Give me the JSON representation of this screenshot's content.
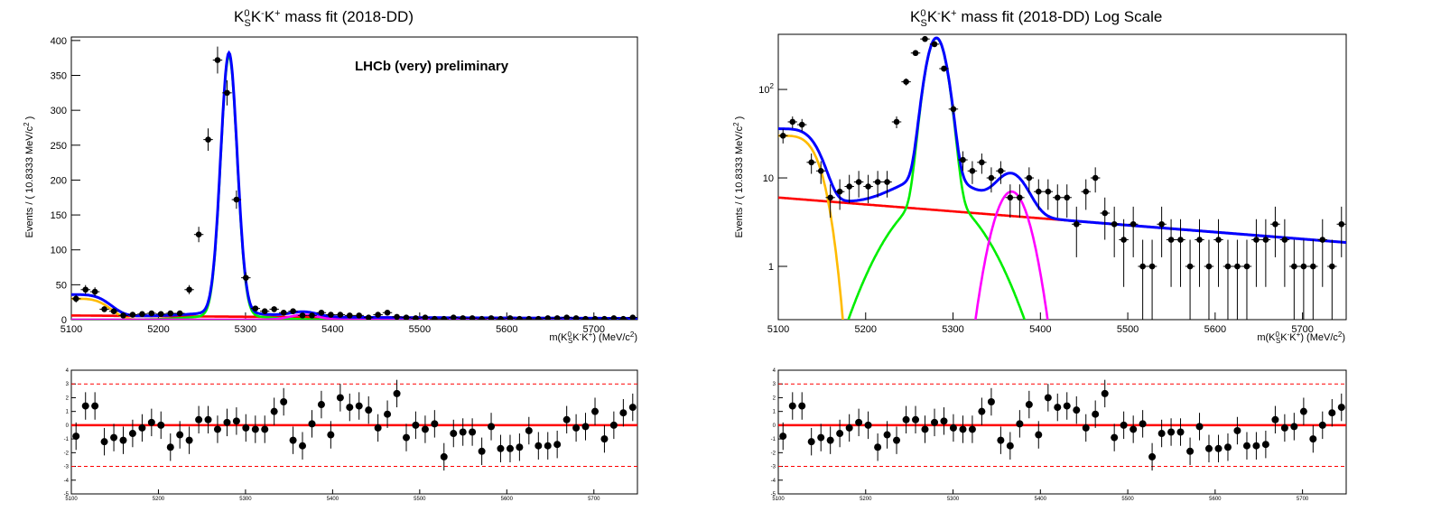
{
  "chart_data": [
    {
      "type": "scatter",
      "scale": "linear",
      "title": "mass fit (2018-DD)",
      "title_prefix": "K",
      "watermark": "LHCb (very) preliminary",
      "xlabel": "m(K_S^0 K^- K^+) (MeV/c^2)",
      "ylabel": "Events / ( 10.8333 MeV/c^2 )",
      "xlim": [
        5100,
        5750
      ],
      "ylim": [
        0,
        405
      ],
      "xticks": [
        "5100",
        "5200",
        "5300",
        "5400",
        "5500",
        "5600",
        "5700"
      ],
      "yticks": [
        "0",
        "50",
        "100",
        "150",
        "200",
        "250",
        "300",
        "350",
        "400"
      ],
      "series": [
        {
          "kind": "data",
          "color": "#000000",
          "x": [
            5105.4,
            5116.3,
            5127.1,
            5137.9,
            5148.8,
            5159.6,
            5170.4,
            5181.3,
            5192.1,
            5202.9,
            5213.8,
            5224.6,
            5235.4,
            5246.3,
            5257.1,
            5267.9,
            5278.8,
            5289.6,
            5300.4,
            5311.3,
            5322.1,
            5332.9,
            5343.8,
            5354.6,
            5365.4,
            5376.3,
            5387.1,
            5397.9,
            5408.8,
            5419.6,
            5430.4,
            5441.3,
            5452.1,
            5462.9,
            5473.8,
            5484.6,
            5495.4,
            5506.3,
            5517.1,
            5527.9,
            5538.8,
            5549.6,
            5560.4,
            5571.3,
            5582.1,
            5592.9,
            5603.8,
            5614.6,
            5625.4,
            5636.3,
            5647.1,
            5657.9,
            5668.8,
            5679.6,
            5690.4,
            5701.3,
            5712.1,
            5722.9,
            5733.8,
            5744.6
          ],
          "y": [
            30,
            43,
            40,
            15,
            12,
            6,
            7,
            8,
            9,
            8,
            9,
            9,
            43,
            122,
            258,
            372,
            325,
            172,
            60,
            16,
            12,
            15,
            10,
            12,
            6,
            6,
            10,
            7,
            7,
            6,
            6,
            3,
            7,
            10,
            4,
            3,
            2,
            3,
            1,
            1,
            3,
            2,
            2,
            1,
            2,
            1,
            2,
            1,
            1,
            1,
            2,
            2,
            3,
            2,
            1,
            1,
            1,
            2,
            1,
            3
          ]
        },
        {
          "kind": "total",
          "color": "#0000ff"
        },
        {
          "kind": "signal",
          "color": "#00ee00"
        },
        {
          "kind": "partially-reconstructed",
          "color": "#ffbb00"
        },
        {
          "kind": "peaking",
          "color": "#ff00ff"
        },
        {
          "kind": "combinatorial",
          "color": "#ff0000"
        }
      ],
      "pull": {
        "ylim": [
          -5,
          4
        ],
        "yticks": [
          "-5",
          "-4",
          "-3",
          "-2",
          "-1",
          "0",
          "1",
          "2",
          "3",
          "4"
        ],
        "xticks": [
          "5100",
          "5200",
          "5300",
          "5400",
          "5500",
          "5600",
          "5700"
        ],
        "bands": [
          -3,
          0,
          3
        ],
        "values": [
          -0.8,
          1.4,
          1.4,
          -1.2,
          -0.9,
          -1.1,
          -0.6,
          -0.2,
          0.2,
          0,
          -1.6,
          -0.7,
          -1.1,
          0.4,
          0.4,
          -0.3,
          0.2,
          0.3,
          -0.2,
          -0.3,
          -0.3,
          1,
          1.7,
          -1.1,
          -1.5,
          0.1,
          1.5,
          -0.7,
          2,
          1.3,
          1.4,
          1.1,
          -0.2,
          0.8,
          2.3,
          -0.9,
          0,
          -0.3,
          0.1,
          -2.3,
          -0.6,
          -0.5,
          -0.5,
          -1.9,
          -0.1,
          -1.7,
          -1.7,
          -1.6,
          -0.4,
          -1.5,
          -1.5,
          -1.4,
          0.4,
          -0.2,
          -0.1,
          1,
          -1,
          0,
          0.9,
          1.3
        ]
      }
    },
    {
      "type": "scatter",
      "scale": "log",
      "title": "mass fit (2018-DD) Log Scale",
      "title_prefix": "K",
      "xlabel": "m(K_S^0 K^- K^+) (MeV/c^2)",
      "ylabel": "Events / ( 10.8333 MeV/c^2 )",
      "xlim": [
        5100,
        5750
      ],
      "ylim": [
        0.25,
        420
      ],
      "xticks": [
        "5100",
        "5200",
        "5300",
        "5400",
        "5500",
        "5600",
        "5700"
      ],
      "yticks": [
        "1",
        "10",
        "10^2"
      ],
      "pull": {
        "ylim": [
          -5,
          4
        ],
        "yticks": [
          "-5",
          "-4",
          "-3",
          "-2",
          "-1",
          "0",
          "1",
          "2",
          "3",
          "4"
        ],
        "xticks": [
          "5100",
          "5200",
          "5300",
          "5400",
          "5500",
          "5600",
          "5700"
        ],
        "bands": [
          -3,
          0,
          3
        ]
      }
    }
  ]
}
